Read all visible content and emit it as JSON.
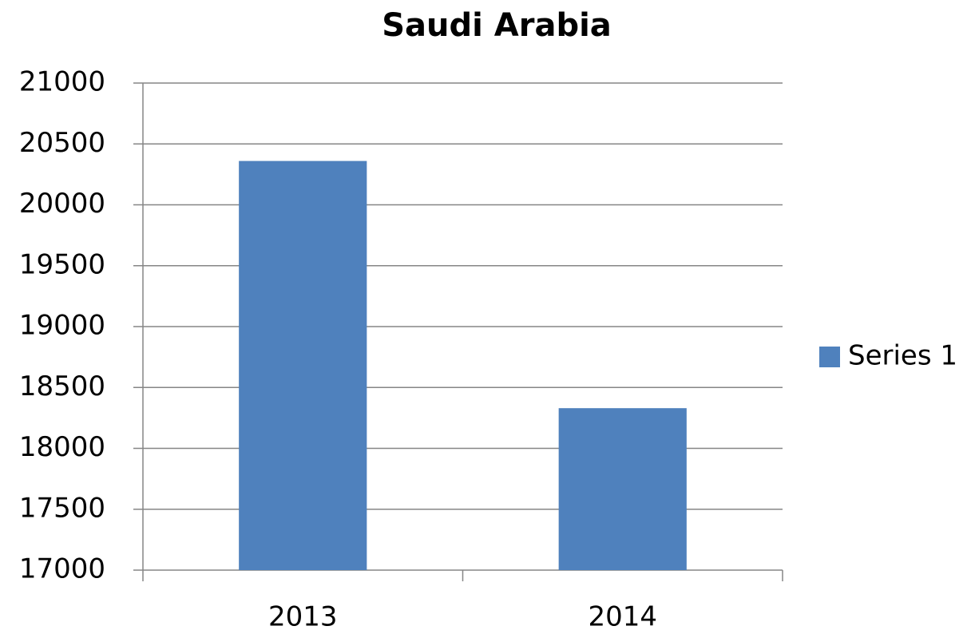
{
  "chart_data": {
    "type": "bar",
    "title": "Saudi Arabia",
    "categories": [
      "2013",
      "2014"
    ],
    "series": [
      {
        "name": "Series 1",
        "color": "#4f81bd",
        "values": [
          20360,
          18330
        ]
      }
    ],
    "ylim": [
      17000,
      21000
    ],
    "yticks": [
      17000,
      17500,
      18000,
      18500,
      19000,
      19500,
      20000,
      20500,
      21000
    ],
    "grid": true,
    "legend": "right"
  }
}
